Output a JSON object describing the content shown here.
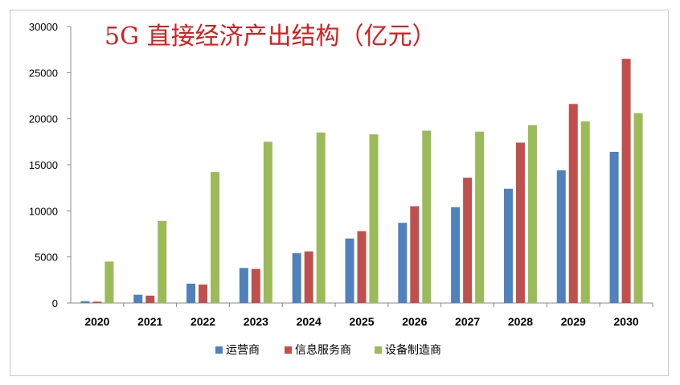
{
  "chart_data": {
    "type": "bar",
    "title": "5G 直接经济产出结构（亿元）",
    "categories": [
      "2020",
      "2021",
      "2022",
      "2023",
      "2024",
      "2025",
      "2026",
      "2027",
      "2028",
      "2029",
      "2030"
    ],
    "ylim": [
      0,
      30000
    ],
    "yticks": [
      0,
      5000,
      10000,
      15000,
      20000,
      25000,
      30000
    ],
    "grid": false,
    "legend_position": "bottom",
    "series": [
      {
        "name": "运营商",
        "color": "#4f81bd",
        "values": [
          200,
          900,
          2100,
          3800,
          5400,
          7000,
          8700,
          10400,
          12400,
          14400,
          16400
        ]
      },
      {
        "name": "信息服务商",
        "color": "#c0504d",
        "values": [
          150,
          800,
          2000,
          3700,
          5600,
          7800,
          10500,
          13600,
          17400,
          21600,
          26500
        ]
      },
      {
        "name": "设备制造商",
        "color": "#9bbb59",
        "values": [
          4500,
          8900,
          14200,
          17500,
          18500,
          18300,
          18700,
          18600,
          19300,
          19700,
          20600
        ]
      }
    ]
  }
}
